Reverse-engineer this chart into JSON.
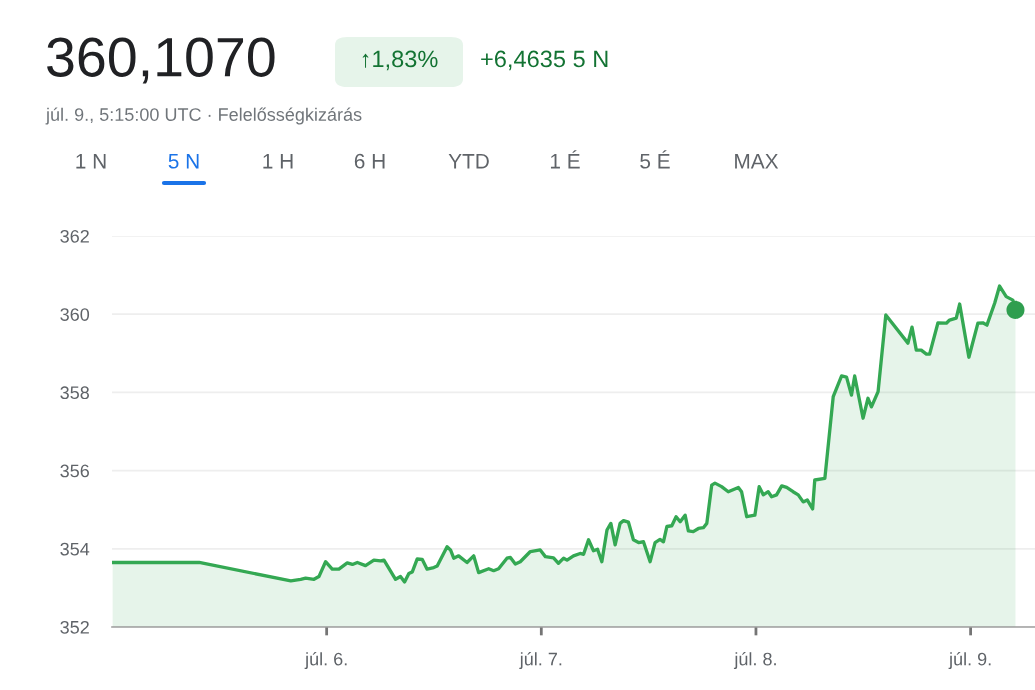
{
  "chart_data": {
    "type": "area",
    "title": "360,1070",
    "annotations": [
      "↑1,83%",
      "+6,4635 5 N",
      "júl. 9., 5:15:00 UTC · Felelősségkizárás",
      "1 N",
      "5 N",
      "1 H",
      "6 H",
      "YTD",
      "1 É",
      "5 É",
      "MAX"
    ],
    "xlim": [
      5.0,
      9.3
    ],
    "xticks": [
      {
        "value": 6,
        "label": "júl. 6."
      },
      {
        "value": 7,
        "label": "júl. 7."
      },
      {
        "value": 8,
        "label": "júl. 8."
      },
      {
        "value": 9,
        "label": "júl. 9."
      }
    ],
    "ylim": [
      352,
      362
    ],
    "yticks": [
      352,
      354,
      356,
      358,
      360,
      362
    ],
    "grid": "y",
    "line_style": "solid",
    "series": [
      {
        "color": "#34a853",
        "x": [
          5.003,
          5.406,
          5.833,
          5.879,
          5.902,
          5.941,
          5.964,
          5.995,
          6.026,
          6.057,
          6.096,
          6.12,
          6.143,
          6.181,
          6.22,
          6.251,
          6.267,
          6.321,
          6.344,
          6.363,
          6.383,
          6.399,
          6.422,
          6.445,
          6.468,
          6.499,
          6.515,
          6.561,
          6.577,
          6.592,
          6.615,
          6.654,
          6.685,
          6.708,
          6.755,
          6.778,
          6.801,
          6.84,
          6.856,
          6.879,
          6.902,
          6.949,
          6.995,
          7.019,
          7.057,
          7.08,
          7.104,
          7.12,
          7.15,
          7.181,
          7.197,
          7.22,
          7.243,
          7.262,
          7.282,
          7.306,
          7.324,
          7.344,
          7.367,
          7.383,
          7.406,
          7.429,
          7.453,
          7.476,
          7.507,
          7.53,
          7.553,
          7.569,
          7.585,
          7.608,
          7.628,
          7.647,
          7.67,
          7.685,
          7.708,
          7.732,
          7.755,
          7.771,
          7.794,
          7.809,
          7.84,
          7.871,
          7.918,
          7.933,
          7.957,
          7.995,
          8.015,
          8.034,
          8.057,
          8.073,
          8.096,
          8.12,
          8.143,
          8.173,
          8.197,
          8.22,
          8.239,
          8.264,
          8.274,
          8.321,
          8.36,
          8.399,
          8.422,
          8.445,
          8.46,
          8.499,
          8.522,
          8.538,
          8.569,
          8.605,
          8.708,
          8.727,
          8.747,
          8.77,
          8.794,
          8.809,
          8.848,
          8.887,
          8.902,
          8.933,
          8.949,
          8.992,
          9.034,
          9.057,
          9.076,
          9.112,
          9.135,
          9.166,
          9.197,
          9.209
        ],
        "values": [
          353.65,
          353.65,
          353.18,
          353.22,
          353.25,
          353.22,
          353.29,
          353.67,
          353.48,
          353.48,
          353.64,
          353.6,
          353.65,
          353.57,
          353.71,
          353.69,
          353.71,
          353.22,
          353.29,
          353.15,
          353.37,
          353.41,
          353.74,
          353.73,
          353.48,
          353.52,
          353.56,
          354.05,
          353.97,
          353.76,
          353.82,
          353.65,
          353.82,
          353.39,
          353.49,
          353.44,
          353.49,
          353.76,
          353.78,
          353.61,
          353.67,
          353.93,
          353.97,
          353.8,
          353.77,
          353.63,
          353.76,
          353.71,
          353.82,
          353.88,
          353.86,
          354.23,
          353.95,
          353.99,
          353.67,
          354.48,
          354.65,
          354.1,
          354.65,
          354.72,
          354.68,
          354.23,
          354.16,
          354.18,
          353.67,
          354.16,
          354.24,
          354.18,
          354.57,
          354.59,
          354.82,
          354.69,
          354.86,
          354.46,
          354.44,
          354.52,
          354.54,
          354.65,
          355.63,
          355.68,
          355.59,
          355.46,
          355.57,
          355.46,
          354.82,
          354.86,
          355.59,
          355.38,
          355.46,
          355.33,
          355.38,
          355.61,
          355.57,
          355.46,
          355.38,
          355.2,
          355.25,
          355.02,
          355.76,
          355.8,
          357.89,
          358.42,
          358.39,
          357.93,
          358.42,
          357.34,
          357.85,
          357.63,
          358.02,
          359.98,
          359.26,
          359.67,
          359.08,
          359.08,
          358.98,
          358.98,
          359.78,
          359.77,
          359.85,
          359.9,
          360.26,
          358.9,
          359.77,
          359.78,
          359.72,
          360.28,
          360.72,
          360.45,
          360.36,
          360.11
        ]
      },
      {
        "type": "scatter",
        "color": "#2f9e4f",
        "marker": "circle",
        "x": [
          9.209
        ],
        "values": [
          360.11
        ]
      }
    ]
  }
}
